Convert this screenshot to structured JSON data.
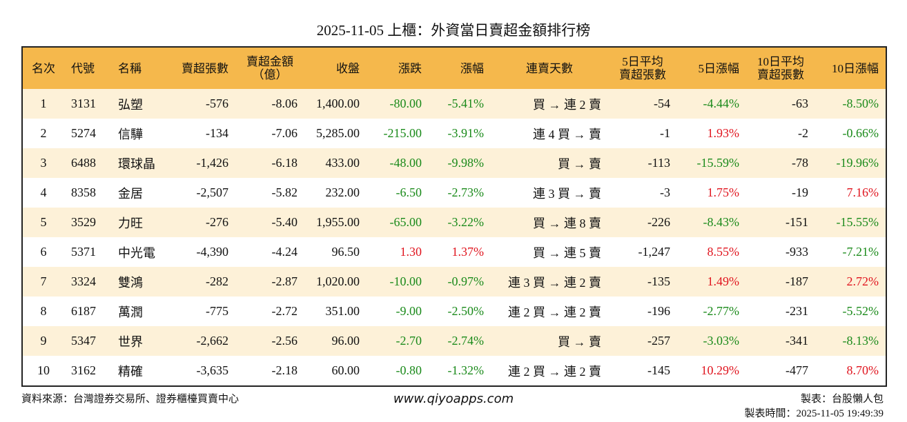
{
  "title": "2025-11-05 上櫃：外資當日賣超金額排行榜",
  "table": {
    "headers": [
      [
        "名次"
      ],
      [
        "代號"
      ],
      [
        "名稱"
      ],
      [
        "賣超張數"
      ],
      [
        "賣超金額",
        "（億）"
      ],
      [
        "收盤"
      ],
      [
        "漲跌"
      ],
      [
        "漲幅"
      ],
      [
        "連賣天數"
      ],
      [
        "5日平均",
        "賣超張數"
      ],
      [
        "5日漲幅"
      ],
      [
        "10日平均",
        "賣超張數"
      ],
      [
        "10日漲幅"
      ]
    ],
    "rows": [
      [
        "1",
        "3131",
        "弘塑",
        "-576",
        "-8.06",
        "1,400.00",
        "-80.00",
        "-5.41%",
        "買 → 連 2 賣",
        "-54",
        "-4.44%",
        "-63",
        "-8.50%"
      ],
      [
        "2",
        "5274",
        "信驊",
        "-134",
        "-7.06",
        "5,285.00",
        "-215.00",
        "-3.91%",
        "連 4 買 → 賣",
        "-1",
        "1.93%",
        "-2",
        "-0.66%"
      ],
      [
        "3",
        "6488",
        "環球晶",
        "-1,426",
        "-6.18",
        "433.00",
        "-48.00",
        "-9.98%",
        "買 → 賣",
        "-113",
        "-15.59%",
        "-78",
        "-19.96%"
      ],
      [
        "4",
        "8358",
        "金居",
        "-2,507",
        "-5.82",
        "232.00",
        "-6.50",
        "-2.73%",
        "連 3 買 → 賣",
        "-3",
        "1.75%",
        "-19",
        "7.16%"
      ],
      [
        "5",
        "3529",
        "力旺",
        "-276",
        "-5.40",
        "1,955.00",
        "-65.00",
        "-3.22%",
        "買 → 連 8 賣",
        "-226",
        "-8.43%",
        "-151",
        "-15.55%"
      ],
      [
        "6",
        "5371",
        "中光電",
        "-4,390",
        "-4.24",
        "96.50",
        "1.30",
        "1.37%",
        "買 → 連 5 賣",
        "-1,247",
        "8.55%",
        "-933",
        "-7.21%"
      ],
      [
        "7",
        "3324",
        "雙鴻",
        "-282",
        "-2.87",
        "1,020.00",
        "-10.00",
        "-0.97%",
        "連 3 買 → 連 2 賣",
        "-135",
        "1.49%",
        "-187",
        "2.72%"
      ],
      [
        "8",
        "6187",
        "萬潤",
        "-775",
        "-2.72",
        "351.00",
        "-9.00",
        "-2.50%",
        "連 2 買 → 連 2 賣",
        "-196",
        "-2.77%",
        "-231",
        "-5.52%"
      ],
      [
        "9",
        "5347",
        "世界",
        "-2,662",
        "-2.56",
        "96.00",
        "-2.70",
        "-2.74%",
        "買 → 賣",
        "-257",
        "-3.03%",
        "-341",
        "-8.13%"
      ],
      [
        "10",
        "3162",
        "精確",
        "-3,635",
        "-2.18",
        "60.00",
        "-0.80",
        "-1.32%",
        "連 2 買 → 連 2 賣",
        "-145",
        "10.29%",
        "-477",
        "8.70%"
      ]
    ]
  },
  "footer": {
    "source": "資料來源：台灣證券交易所、證券櫃檯買賣中心",
    "site": "www.qiyoapps.com",
    "maker": "製表：台股懶人包",
    "time": "製表時間：2025-11-05 19:49:39"
  }
}
